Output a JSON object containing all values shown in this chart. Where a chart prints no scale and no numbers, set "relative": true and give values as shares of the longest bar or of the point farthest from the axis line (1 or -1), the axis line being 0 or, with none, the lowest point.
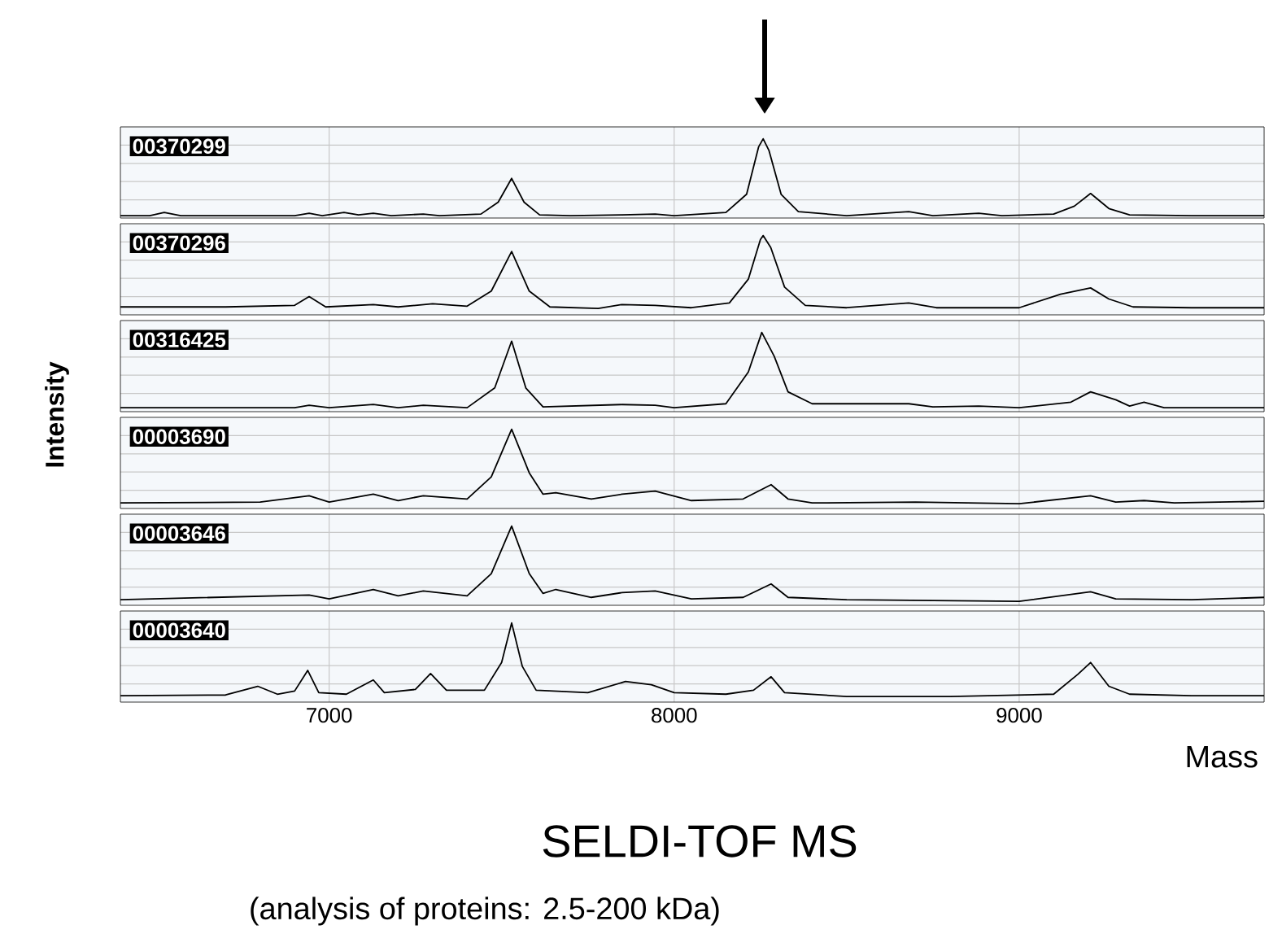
{
  "chart_data": [
    {
      "type": "line",
      "relative": true,
      "xlim": [
        6395,
        9710
      ],
      "xticks": [
        7000,
        8000,
        9000
      ],
      "grid": true,
      "tick_labels": false,
      "x": [
        6395,
        6480,
        6522,
        6570,
        6900,
        6942,
        6980,
        7043,
        7085,
        7128,
        7180,
        7273,
        7320,
        7440,
        7490,
        7529,
        7565,
        7610,
        7700,
        7849,
        7945,
        8000,
        8150,
        8210,
        8245,
        8258,
        8275,
        8310,
        8360,
        8500,
        8680,
        8750,
        8883,
        8950,
        9100,
        9160,
        9207,
        9260,
        9320,
        9500,
        9710
      ],
      "series": [
        {
          "name": "00370299",
          "color": "#000000",
          "values": [
            0.03,
            0.03,
            0.07,
            0.03,
            0.03,
            0.06,
            0.03,
            0.07,
            0.04,
            0.06,
            0.03,
            0.05,
            0.03,
            0.05,
            0.2,
            0.5,
            0.2,
            0.04,
            0.03,
            0.04,
            0.05,
            0.03,
            0.07,
            0.3,
            0.9,
            1,
            0.85,
            0.3,
            0.08,
            0.03,
            0.08,
            0.03,
            0.06,
            0.03,
            0.05,
            0.15,
            0.31,
            0.12,
            0.04,
            0.03,
            0.03
          ]
        }
      ]
    },
    {
      "type": "line",
      "relative": true,
      "xlim": [
        6395,
        9710
      ],
      "xticks": [
        7000,
        8000,
        9000
      ],
      "grid": true,
      "tick_labels": false,
      "x": [
        6395,
        6700,
        6900,
        6942,
        6990,
        7128,
        7200,
        7300,
        7400,
        7470,
        7529,
        7580,
        7640,
        7780,
        7849,
        7945,
        8050,
        8160,
        8215,
        8250,
        8258,
        8280,
        8320,
        8380,
        8500,
        8680,
        8760,
        9000,
        9120,
        9207,
        9260,
        9330,
        9500,
        9710
      ],
      "series": [
        {
          "name": "00370296",
          "color": "#000000",
          "values": [
            0.1,
            0.1,
            0.12,
            0.23,
            0.1,
            0.13,
            0.1,
            0.14,
            0.11,
            0.3,
            0.8,
            0.3,
            0.1,
            0.08,
            0.13,
            0.12,
            0.09,
            0.15,
            0.45,
            0.95,
            1,
            0.85,
            0.35,
            0.12,
            0.09,
            0.15,
            0.09,
            0.09,
            0.26,
            0.34,
            0.2,
            0.1,
            0.09,
            0.09
          ]
        }
      ]
    },
    {
      "type": "line",
      "relative": true,
      "xlim": [
        6395,
        9710
      ],
      "xticks": [
        7000,
        8000,
        9000
      ],
      "grid": true,
      "tick_labels": false,
      "x": [
        6395,
        6900,
        6942,
        7000,
        7128,
        7200,
        7273,
        7400,
        7480,
        7529,
        7570,
        7620,
        7849,
        7945,
        8000,
        8150,
        8215,
        8254,
        8290,
        8330,
        8400,
        8680,
        8750,
        8883,
        9000,
        9150,
        9207,
        9280,
        9320,
        9362,
        9420,
        9710
      ],
      "series": [
        {
          "name": "00316425",
          "color": "#000000",
          "values": [
            0.05,
            0.05,
            0.08,
            0.05,
            0.09,
            0.05,
            0.08,
            0.05,
            0.3,
            0.89,
            0.3,
            0.06,
            0.09,
            0.08,
            0.05,
            0.1,
            0.5,
            1,
            0.7,
            0.25,
            0.1,
            0.1,
            0.06,
            0.07,
            0.05,
            0.12,
            0.25,
            0.15,
            0.07,
            0.12,
            0.05,
            0.05
          ]
        }
      ]
    },
    {
      "type": "line",
      "relative": true,
      "xlim": [
        6395,
        9710
      ],
      "xticks": [
        7000,
        8000,
        9000
      ],
      "grid": true,
      "tick_labels": false,
      "x": [
        6395,
        6800,
        6942,
        7000,
        7128,
        7200,
        7273,
        7400,
        7470,
        7529,
        7580,
        7620,
        7657,
        7760,
        7849,
        7945,
        8050,
        8200,
        8281,
        8330,
        8400,
        8700,
        9000,
        9207,
        9280,
        9362,
        9450,
        9710
      ],
      "series": [
        {
          "name": "00003690",
          "color": "#000000",
          "values": [
            0.07,
            0.08,
            0.16,
            0.08,
            0.18,
            0.1,
            0.16,
            0.12,
            0.4,
            1,
            0.45,
            0.18,
            0.2,
            0.12,
            0.18,
            0.22,
            0.1,
            0.12,
            0.3,
            0.12,
            0.07,
            0.08,
            0.06,
            0.16,
            0.08,
            0.1,
            0.07,
            0.09
          ]
        }
      ]
    },
    {
      "type": "line",
      "relative": true,
      "xlim": [
        6395,
        9710
      ],
      "xticks": [
        7000,
        8000,
        9000
      ],
      "grid": true,
      "tick_labels": false,
      "x": [
        6395,
        6942,
        7000,
        7128,
        7200,
        7273,
        7400,
        7470,
        7529,
        7580,
        7620,
        7657,
        7760,
        7849,
        7945,
        8050,
        8200,
        8281,
        8330,
        8500,
        9000,
        9207,
        9280,
        9500,
        9710
      ],
      "series": [
        {
          "name": "00003646",
          "color": "#000000",
          "values": [
            0.07,
            0.13,
            0.08,
            0.2,
            0.12,
            0.18,
            0.12,
            0.4,
            1,
            0.4,
            0.15,
            0.2,
            0.1,
            0.16,
            0.18,
            0.08,
            0.1,
            0.27,
            0.1,
            0.07,
            0.05,
            0.17,
            0.08,
            0.07,
            0.1
          ]
        }
      ]
    },
    {
      "type": "line",
      "relative": true,
      "xlim": [
        6395,
        9710
      ],
      "xticks": [
        7000,
        8000,
        9000
      ],
      "grid": true,
      "title": "SELDI-TOF MS",
      "subtitle": "(analysis of proteins: 2.5-200 kDa)",
      "xlabel": "Mass",
      "ylabel": "Intensity",
      "x": [
        6395,
        6700,
        6793,
        6850,
        6900,
        6938,
        6970,
        7050,
        7128,
        7160,
        7250,
        7294,
        7340,
        7450,
        7500,
        7529,
        7560,
        7600,
        7750,
        7859,
        7934,
        8000,
        8150,
        8230,
        8281,
        8320,
        8500,
        8800,
        9100,
        9170,
        9207,
        9260,
        9320,
        9500,
        9710
      ],
      "series": [
        {
          "name": "00003640",
          "color": "#000000",
          "values": [
            0.08,
            0.09,
            0.2,
            0.1,
            0.14,
            0.4,
            0.12,
            0.1,
            0.28,
            0.12,
            0.16,
            0.36,
            0.15,
            0.15,
            0.5,
            1,
            0.45,
            0.15,
            0.12,
            0.26,
            0.22,
            0.12,
            0.1,
            0.15,
            0.32,
            0.12,
            0.07,
            0.07,
            0.1,
            0.35,
            0.5,
            0.2,
            0.1,
            0.08,
            0.08
          ]
        }
      ]
    }
  ]
}
